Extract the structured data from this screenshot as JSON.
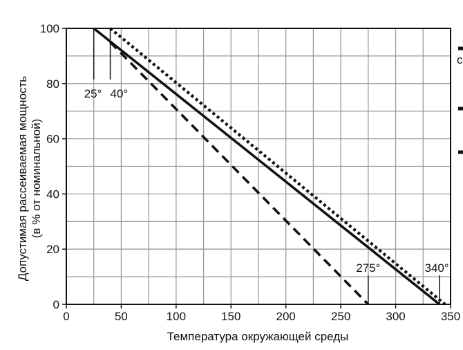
{
  "chart_data": {
    "type": "line",
    "xlabel": "Температура окружающей среды",
    "ylabel_line1": "Допустимая рассеиваемая мощность",
    "ylabel_line2": "(в % от номинальной)",
    "xlim": [
      0,
      350
    ],
    "ylim": [
      0,
      100
    ],
    "x_ticks": [
      0,
      50,
      100,
      150,
      200,
      250,
      300,
      350
    ],
    "y_ticks": [
      0,
      20,
      40,
      60,
      80,
      100
    ],
    "x_tick_labels": [
      "0",
      "50",
      "100",
      "150",
      "200",
      "250",
      "300",
      "350"
    ],
    "y_tick_labels": [
      "0",
      "20",
      "40",
      "60",
      "80",
      "100"
    ],
    "grid": true,
    "series": [
      {
        "style": "solid",
        "x": [
          25,
          340
        ],
        "y": [
          100,
          0
        ]
      },
      {
        "style": "dotted",
        "x": [
          40,
          345
        ],
        "y": [
          100,
          0
        ]
      },
      {
        "style": "dashed",
        "x": [
          40,
          275
        ],
        "y": [
          95,
          0
        ]
      }
    ],
    "annotations": [
      {
        "text": "25°",
        "x": 25
      },
      {
        "text": "40°",
        "x": 40
      },
      {
        "text": "275°",
        "x": 275
      },
      {
        "text": "340°",
        "x": 340
      }
    ],
    "legend_partial_text": "c"
  }
}
